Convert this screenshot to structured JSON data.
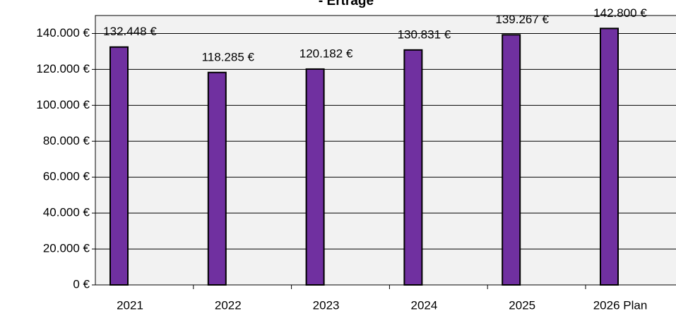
{
  "chart_data": {
    "type": "bar",
    "title": "- Erträge",
    "categories": [
      "2021",
      "2022",
      "2023",
      "2024",
      "2025",
      "2026 Plan"
    ],
    "series": [
      {
        "color": "#7030a0",
        "values": [
          132448,
          118285,
          120182,
          130831,
          139267,
          142800
        ],
        "value_labels": [
          "132.448 €",
          "118.285 €",
          "120.182 €",
          "130.831 €",
          "139.267 €",
          "142.800 €"
        ]
      },
      {
        "color": "#ffffff",
        "values": [
          0,
          null,
          null,
          null,
          null,
          null
        ]
      }
    ],
    "ylim": [
      0,
      150000
    ],
    "yticks": [
      {
        "value": 0,
        "label": "0 €"
      },
      {
        "value": 20000,
        "label": "20.000 €"
      },
      {
        "value": 40000,
        "label": "40.000 €"
      },
      {
        "value": 60000,
        "label": "60.000 €"
      },
      {
        "value": 80000,
        "label": "80.000 €"
      },
      {
        "value": 100000,
        "label": "100.000 €"
      },
      {
        "value": 120000,
        "label": "120.000 €"
      },
      {
        "value": 140000,
        "label": "140.000 €"
      }
    ],
    "grid": true
  }
}
